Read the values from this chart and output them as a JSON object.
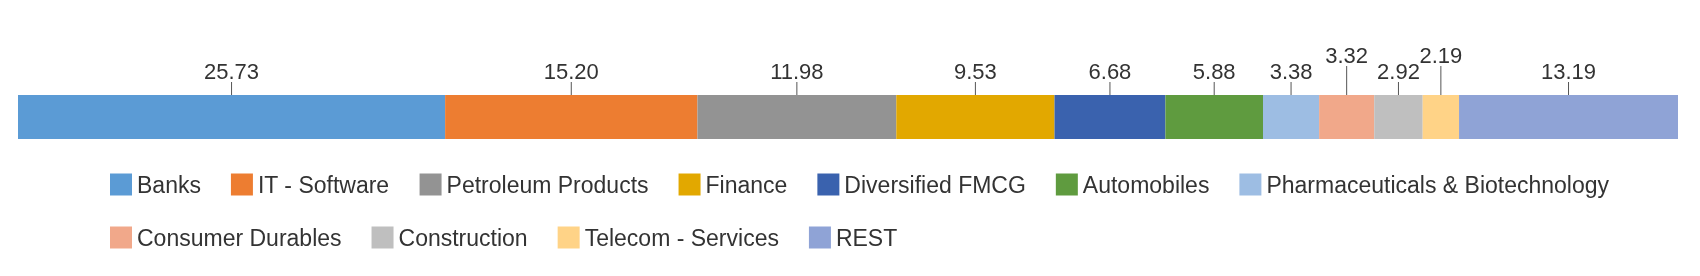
{
  "chart_data": {
    "type": "bar",
    "orientation": "horizontal",
    "stacked": true,
    "categories": [
      null
    ],
    "xlim": [
      0,
      100
    ],
    "tick_labels": false,
    "legend": "bottom",
    "series": [
      {
        "name": "Banks",
        "color": "#5b9bd5",
        "values": [
          25.73
        ],
        "value_labels": [
          "25.73"
        ]
      },
      {
        "name": "IT - Software",
        "color": "#ed7d31",
        "values": [
          15.2
        ],
        "value_labels": [
          "15.20"
        ]
      },
      {
        "name": "Petroleum Products",
        "color": "#939393",
        "values": [
          11.98
        ],
        "value_labels": [
          "11.98"
        ]
      },
      {
        "name": "Finance",
        "color": "#e2a800",
        "values": [
          9.53
        ],
        "value_labels": [
          "9.53"
        ]
      },
      {
        "name": "Diversified FMCG",
        "color": "#3a62ae",
        "values": [
          6.68
        ],
        "value_labels": [
          "6.68"
        ]
      },
      {
        "name": "Automobiles",
        "color": "#5f9b3f",
        "values": [
          5.88
        ],
        "value_labels": [
          "5.88"
        ]
      },
      {
        "name": "Pharmaceuticals & Biotechnology",
        "color": "#9dbde3",
        "values": [
          3.38
        ],
        "value_labels": [
          "3.38"
        ]
      },
      {
        "name": "Consumer Durables",
        "color": "#f1a88a",
        "values": [
          3.32
        ],
        "value_labels": [
          "3.32"
        ]
      },
      {
        "name": "Construction",
        "color": "#bfbfbf",
        "values": [
          2.92
        ],
        "value_labels": [
          "2.92"
        ]
      },
      {
        "name": "Telecom - Services",
        "color": "#ffd387",
        "values": [
          2.19
        ],
        "value_labels": [
          "2.19"
        ]
      },
      {
        "name": "REST",
        "color": "#8fa3d6",
        "values": [
          13.19
        ],
        "value_labels": [
          "13.19"
        ]
      }
    ]
  }
}
